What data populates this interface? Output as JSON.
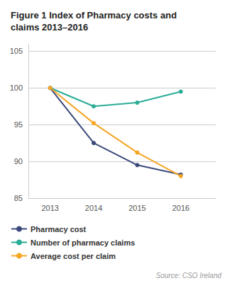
{
  "chart_data": {
    "type": "line",
    "title": "Figure 1 Index of Pharmacy costs and\nclaims 2013–2016",
    "x": [
      2013,
      2014,
      2015,
      2016
    ],
    "series": [
      {
        "name": "Pharmacy cost",
        "color": "#3b4a7a",
        "values": [
          100,
          92.5,
          89.5,
          88.2
        ]
      },
      {
        "name": "Number of pharmacy claims",
        "color": "#2aac96",
        "values": [
          100,
          97.5,
          98.0,
          99.5
        ]
      },
      {
        "name": "Average cost per claim",
        "color": "#f5a623",
        "values": [
          100,
          95.2,
          91.2,
          88.0
        ]
      }
    ],
    "xlim": [
      2012.5,
      2016.8
    ],
    "xticks": [
      2013,
      2014,
      2015,
      2016
    ],
    "ylim": [
      85,
      106
    ],
    "yticks": [
      85,
      90,
      95,
      100,
      105
    ],
    "grid": true,
    "legend": "bottom",
    "marker": "circle",
    "annotations": [
      "Source: CSO Ireland"
    ]
  }
}
